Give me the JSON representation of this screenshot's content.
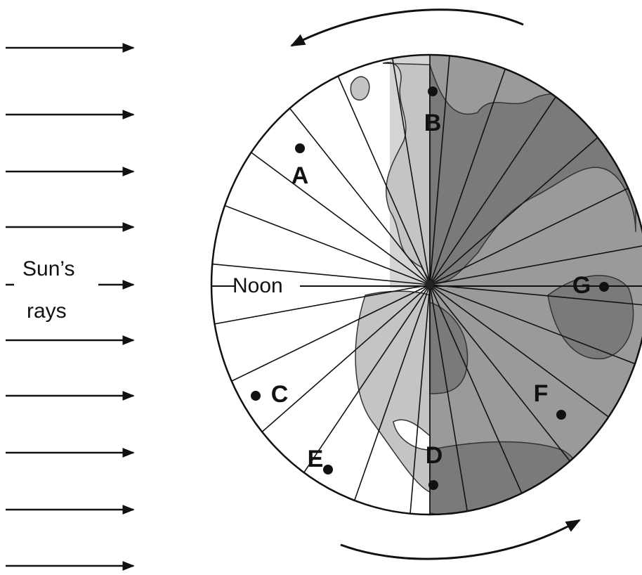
{
  "sun_rays": {
    "line1": "Sun’s",
    "line2": "rays"
  },
  "noon": "Noon",
  "points": [
    {
      "label": "A"
    },
    {
      "label": "B"
    },
    {
      "label": "C"
    },
    {
      "label": "D"
    },
    {
      "label": "E"
    },
    {
      "label": "F"
    },
    {
      "label": "G"
    }
  ]
}
